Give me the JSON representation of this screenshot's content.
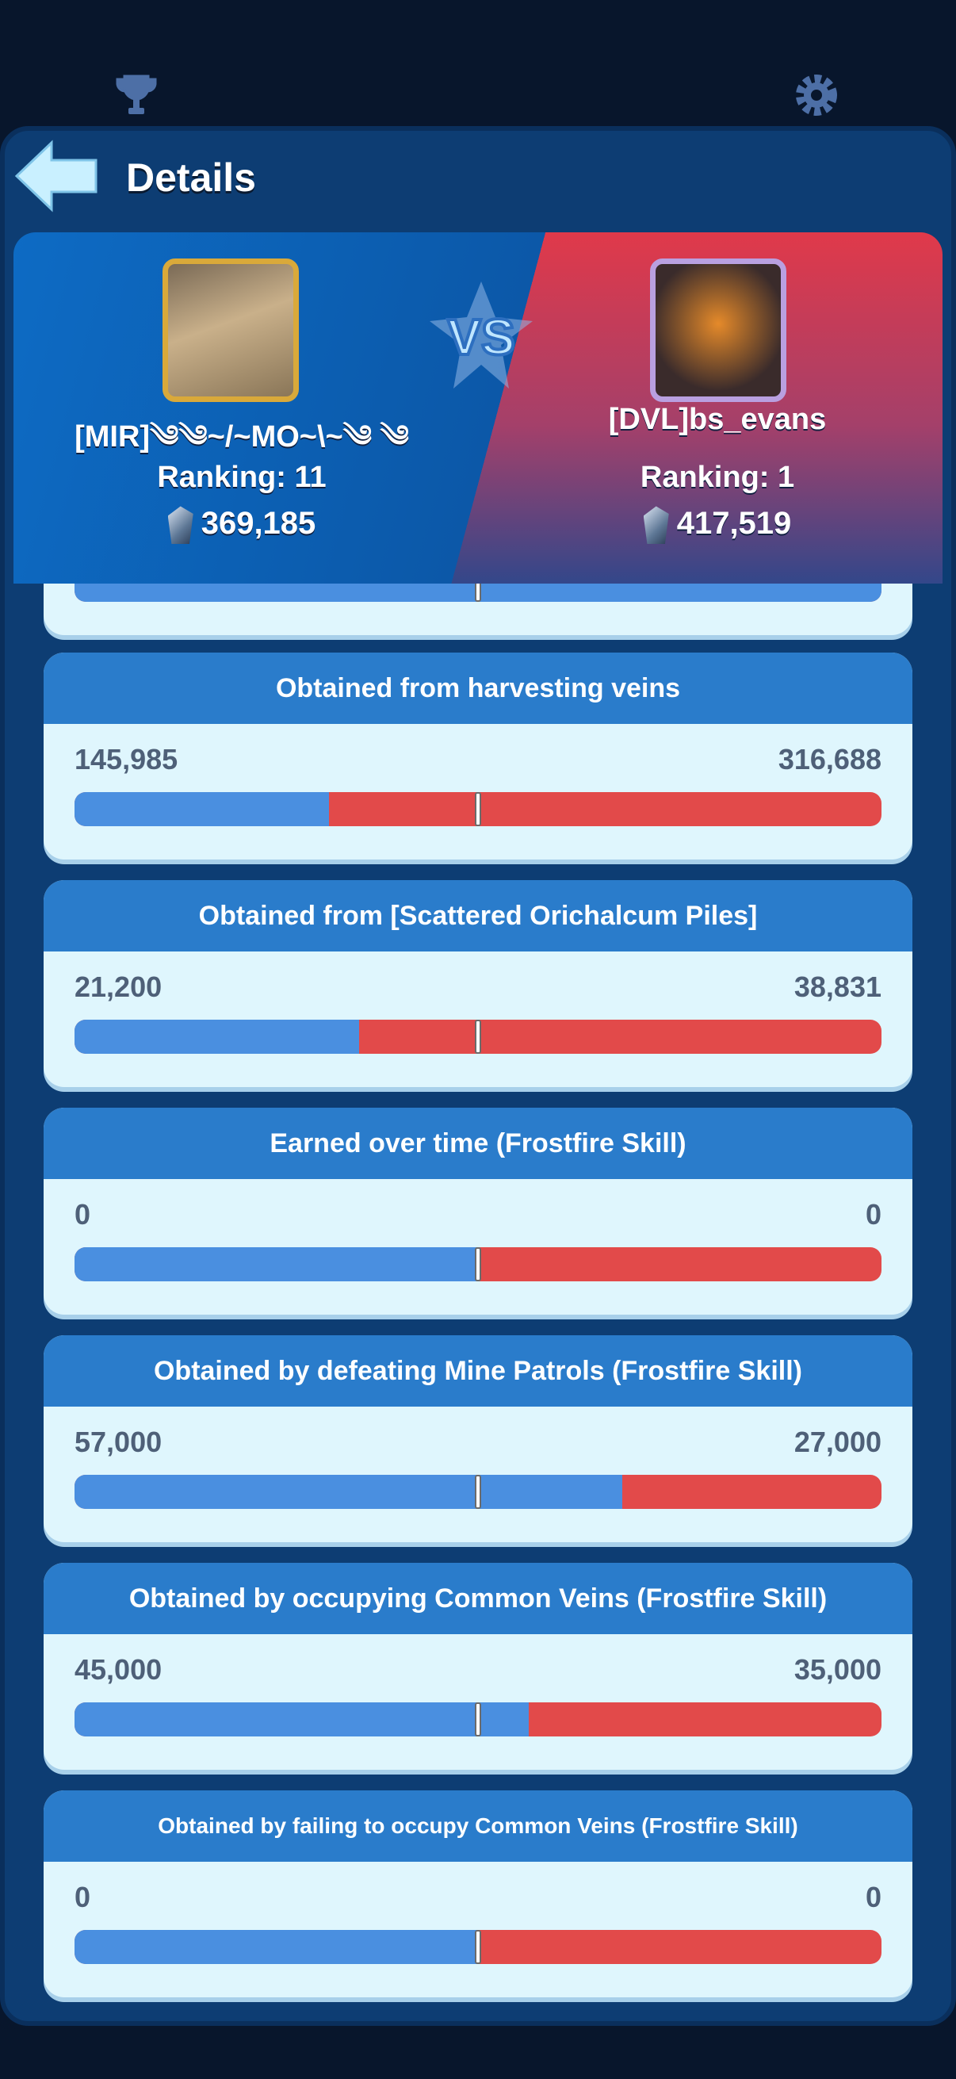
{
  "header": {
    "title": "Details",
    "icons": [
      "trophy-icon",
      "gear-icon",
      "back-arrow-icon"
    ]
  },
  "colors": {
    "left_player": "#4a8fe0",
    "right_player": "#e24a4a",
    "card_header": "#2a7ccb"
  },
  "players": {
    "left": {
      "name": "[MIR]༄༄~/~MO~\\~༄ ༄",
      "ranking": "Ranking: 11",
      "score": "369,185"
    },
    "right": {
      "name": "[DVL]bs_evans",
      "ranking": "Ranking: 1",
      "score": "417,519"
    },
    "vs": "VS"
  },
  "partial_stat": {
    "left_share": 1.0
  },
  "stats": [
    {
      "title": "Obtained from harvesting veins",
      "left": "145,985",
      "right": "316,688",
      "left_share": 0.315
    },
    {
      "title": "Obtained from [Scattered Orichalcum Piles]",
      "left": "21,200",
      "right": "38,831",
      "left_share": 0.353
    },
    {
      "title": "Earned over time (Frostfire Skill)",
      "left": "0",
      "right": "0",
      "left_share": 0.5
    },
    {
      "title": "Obtained by defeating Mine Patrols (Frostfire Skill)",
      "left": "57,000",
      "right": "27,000",
      "left_share": 0.679
    },
    {
      "title": "Obtained by occupying Common Veins (Frostfire Skill)",
      "left": "45,000",
      "right": "35,000",
      "left_share": 0.5625
    },
    {
      "title": "Obtained by failing to occupy Common Veins (Frostfire Skill)",
      "left": "0",
      "right": "0",
      "left_share": 0.5
    }
  ]
}
